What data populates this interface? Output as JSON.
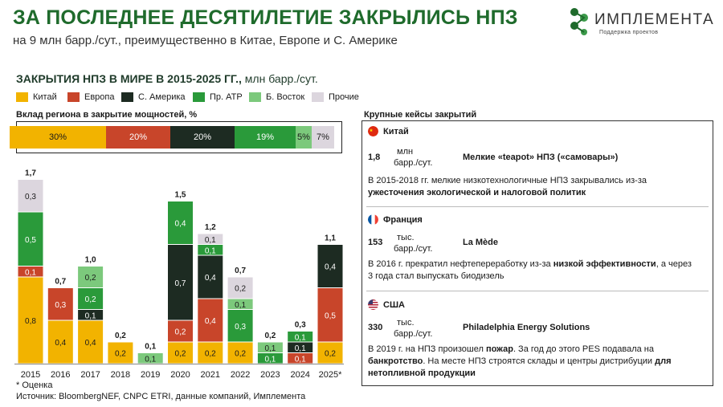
{
  "header": {
    "title": "ЗА ПОСЛЕДНЕЕ ДЕСЯТИЛЕТИЕ ЗАКРЫЛИСЬ НПЗ",
    "subtitle": "на 9 млн барр./сут., преимущественно в Китае, Европе и С. Америке"
  },
  "logo": {
    "name": "ИМПЛЕМЕНТА",
    "tagline": "Поддержка проектов"
  },
  "colors": {
    "china": "#f2b300",
    "europe": "#c8452a",
    "namerica": "#1d2b22",
    "latam": "#2a9a3a",
    "mideast": "#7cc97c",
    "other": "#dcd6de"
  },
  "chart_data": [
    {
      "type": "bar",
      "subtype": "stacked",
      "title_bold": "ЗАКРЫТИЯ НПЗ В МИРЕ В 2015-2025 ГГ.,",
      "title_unit": "млн барр./сут.",
      "legend_position": "top",
      "categories": [
        "2015",
        "2016",
        "2017",
        "2018",
        "2019",
        "2020",
        "2021",
        "2022",
        "2023",
        "2024",
        "2025*"
      ],
      "totals": [
        "1,7",
        "0,7",
        "1,0",
        "0,2",
        "0,1",
        "1,5",
        "1,2",
        "0,7",
        "0,2",
        "0,3",
        "1,1"
      ],
      "series": [
        {
          "key": "china",
          "name": "Китай",
          "values": [
            0.8,
            0.4,
            0.4,
            0.2,
            0,
            0.2,
            0.2,
            0.2,
            0,
            0,
            0.2
          ]
        },
        {
          "key": "europe",
          "name": "Европа",
          "values": [
            0.1,
            0.3,
            0,
            0,
            0,
            0.2,
            0.4,
            0,
            0,
            0.1,
            0.5
          ]
        },
        {
          "key": "namerica",
          "name": "С. Америка",
          "values": [
            0,
            0,
            0.1,
            0,
            0,
            0.7,
            0.4,
            0,
            0,
            0.1,
            0.4
          ]
        },
        {
          "key": "latam",
          "name": "Пр. АТР",
          "values": [
            0.5,
            0,
            0.2,
            0,
            0,
            0.4,
            0.1,
            0.3,
            0.1,
            0.1,
            0
          ]
        },
        {
          "key": "mideast",
          "name": "Б. Восток",
          "values": [
            0,
            0,
            0.2,
            0,
            0.1,
            0,
            0,
            0.1,
            0.1,
            0,
            0
          ]
        },
        {
          "key": "other",
          "name": "Прочие",
          "values": [
            0.3,
            0,
            0,
            0,
            0,
            0,
            0.1,
            0.2,
            0,
            0,
            0
          ]
        }
      ]
    },
    {
      "type": "bar",
      "subtype": "100% stacked",
      "title": "Вклад региона в закрытие мощностей, %",
      "series": [
        {
          "key": "china",
          "name": "Китай",
          "value": 30,
          "label": "30%"
        },
        {
          "key": "europe",
          "name": "Европа",
          "value": 20,
          "label": "20%"
        },
        {
          "key": "namerica",
          "name": "С. Америка",
          "value": 20,
          "label": "20%"
        },
        {
          "key": "latam",
          "name": "Пр. АТР",
          "value": 19,
          "label": "19%"
        },
        {
          "key": "mideast",
          "name": "Б. Восток",
          "value": 5,
          "label": "5%"
        },
        {
          "key": "other",
          "name": "Прочие",
          "value": 7,
          "label": "7%"
        }
      ]
    }
  ],
  "footnote": "* Оценка",
  "source": "Источник: BloombergNEF, CNPC ETRI, данные компаний, Имплемента",
  "cases": {
    "title": "Крупные кейсы закрытий",
    "items": [
      {
        "country": "Китай",
        "flag": "china-flag-icon",
        "number": "1,8",
        "unit_line1": "млн",
        "unit_line2": "барр./сут.",
        "name": "Мелкие «teapot» НПЗ («самовары»)",
        "desc_plain": "В 2015-2018 гг. мелкие низкотехнологичные НПЗ закрывались из-за ",
        "desc_bold": "ужесточения экологической и налоговой политик",
        "desc_tail": ""
      },
      {
        "country": "Франция",
        "flag": "france-flag-icon",
        "number": "153",
        "unit_line1": "тыс.",
        "unit_line2": "барр./сут.",
        "name": "La Mède",
        "desc_plain": "В 2016 г. прекратил нефтепереработку из-за ",
        "desc_bold": "низкой эффективности",
        "desc_tail": ", а через 3 года стал выпускать биодизель"
      },
      {
        "country": "США",
        "flag": "usa-flag-icon",
        "number": "330",
        "unit_line1": "тыс.",
        "unit_line2": "барр./сут.",
        "name": "Philadelphia Energy Solutions",
        "desc_plain": "В 2019 г. на НПЗ произошел ",
        "desc_bold": "пожар",
        "desc_mid": ". За год до этого PES подавала на ",
        "desc_bold2": "банкротство",
        "desc_mid2": ". На месте НПЗ строятся склады и центры дистрибуции ",
        "desc_bold3": "для нетопливной продукции"
      }
    ]
  }
}
